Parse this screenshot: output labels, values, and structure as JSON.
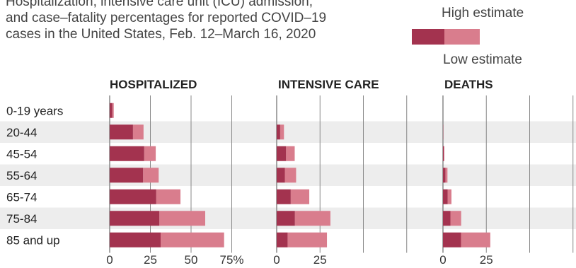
{
  "subtitle_lines": [
    "Hospitalization, intensive care unit (ICU) admission,",
    "and case–fatality percentages for reported COVID–19",
    "cases in the United States, Feb. 12–March 16, 2020"
  ],
  "legend": {
    "high": "High estimate",
    "low": "Low estimate"
  },
  "colors": {
    "low": "#a3334f",
    "high": "#d97d8d",
    "band": "#ededed",
    "grid": "#888888"
  },
  "chart_data": {
    "type": "bar",
    "orientation": "horizontal",
    "categories": [
      "0-19 years",
      "20-44",
      "45-54",
      "55-64",
      "65-74",
      "75-84",
      "85 and up"
    ],
    "panels": [
      {
        "title": "HOSPITALIZED",
        "xlim": [
          0,
          75
        ],
        "ticks": [
          0,
          25,
          50,
          75
        ],
        "tick_labels": [
          "0",
          "25",
          "50",
          "75%"
        ],
        "low": [
          1.6,
          14.3,
          21.2,
          20.5,
          28.6,
          30.5,
          31.3
        ],
        "high": [
          2.5,
          20.8,
          28.3,
          30.1,
          43.5,
          58.7,
          70.3
        ]
      },
      {
        "title": "INTENSIVE CARE",
        "xlim": [
          0,
          75
        ],
        "ticks": [
          0,
          25,
          50,
          75
        ],
        "tick_labels": [
          "0",
          "25"
        ],
        "low": [
          0,
          2.0,
          5.4,
          4.7,
          8.1,
          10.5,
          6.3
        ],
        "high": [
          0,
          4.2,
          10.4,
          11.2,
          18.8,
          31.0,
          29.0
        ]
      },
      {
        "title": "DEATHS",
        "xlim": [
          0,
          75
        ],
        "ticks": [
          0,
          25,
          50,
          75
        ],
        "tick_labels": [
          "0",
          "25"
        ],
        "low": [
          0,
          0.1,
          0.5,
          1.4,
          2.7,
          4.3,
          10.4
        ],
        "high": [
          0,
          0.2,
          0.8,
          2.6,
          4.9,
          10.5,
          27.3
        ]
      }
    ]
  }
}
